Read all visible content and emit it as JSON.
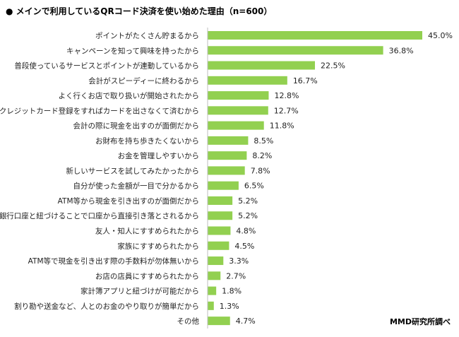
{
  "chart_data": {
    "type": "bar",
    "orientation": "horizontal",
    "title": "● メインで利用しているQRコード決済を使い始めた理由（n=600）",
    "source": "MMD研究所調べ",
    "unit": "%",
    "bar_color": "#92D050",
    "xlim": [
      0,
      50
    ],
    "grid": false,
    "categories": [
      "ポイントがたくさん貯まるから",
      "キャンペーンを知って興味を持ったから",
      "普段使っているサービスとポイントが連動しているから",
      "会計がスピーディーに終わるから",
      "よく行くお店で取り扱いが開始されたから",
      "クレジットカード登録をすればカードを出さなくて済むから",
      "会計の際に現金を出すのが面倒だから",
      "お財布を持ち歩きたくないから",
      "お金を管理しやすいから",
      "新しいサービスを試してみたかったから",
      "自分が使った金額が一目で分かるから",
      "ATM等から現金を引き出すのが面倒だから",
      "銀行口座と紐づけることで口座から直接引き落とされるから",
      "友人・知人にすすめられたから",
      "家族にすすめられたから",
      "ATM等で現金を引き出す際の手数料が勿体無いから",
      "お店の店員にすすめられたから",
      "家計簿アプリと紐づけが可能だから",
      "割り勘や送金など、人とのお金のやり取りが簡単だから",
      "その他"
    ],
    "values": [
      45.0,
      36.8,
      22.5,
      16.7,
      12.8,
      12.7,
      11.8,
      8.5,
      8.2,
      7.8,
      6.5,
      5.2,
      5.2,
      4.8,
      4.5,
      3.3,
      2.7,
      1.8,
      1.3,
      4.7
    ],
    "data_labels": [
      "45.0%",
      "36.8%",
      "22.5%",
      "16.7%",
      "12.8%",
      "12.7%",
      "11.8%",
      "8.5%",
      "8.2%",
      "7.8%",
      "6.5%",
      "5.2%",
      "5.2%",
      "4.8%",
      "4.5%",
      "3.3%",
      "2.7%",
      "1.8%",
      "1.3%",
      "4.7%"
    ]
  }
}
